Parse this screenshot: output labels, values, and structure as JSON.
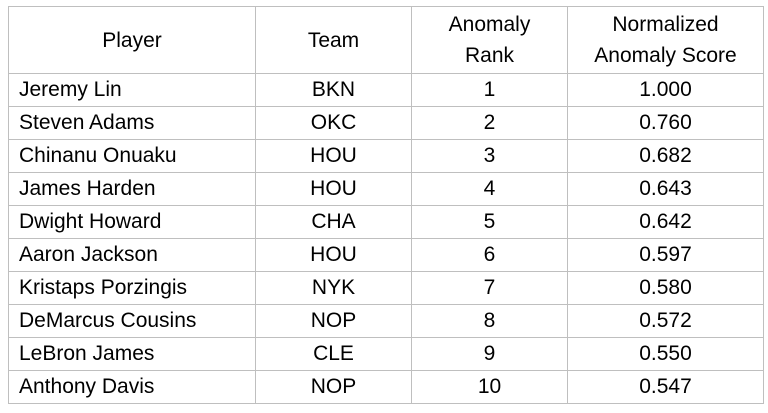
{
  "table": {
    "headers": {
      "player": "Player",
      "team": "Team",
      "rank_line1": "Anomaly",
      "rank_line2": "Rank",
      "score_line1": "Normalized",
      "score_line2": "Anomaly Score"
    },
    "rows": [
      {
        "player": "Jeremy Lin",
        "team": "BKN",
        "rank": "1",
        "score": "1.000"
      },
      {
        "player": "Steven Adams",
        "team": "OKC",
        "rank": "2",
        "score": "0.760"
      },
      {
        "player": "Chinanu Onuaku",
        "team": "HOU",
        "rank": "3",
        "score": "0.682"
      },
      {
        "player": "James Harden",
        "team": "HOU",
        "rank": "4",
        "score": "0.643"
      },
      {
        "player": "Dwight Howard",
        "team": "CHA",
        "rank": "5",
        "score": "0.642"
      },
      {
        "player": "Aaron Jackson",
        "team": "HOU",
        "rank": "6",
        "score": "0.597"
      },
      {
        "player": "Kristaps Porzingis",
        "team": "NYK",
        "rank": "7",
        "score": "0.580"
      },
      {
        "player": "DeMarcus Cousins",
        "team": "NOP",
        "rank": "8",
        "score": "0.572"
      },
      {
        "player": "LeBron James",
        "team": "CLE",
        "rank": "9",
        "score": "0.550"
      },
      {
        "player": "Anthony Davis",
        "team": "NOP",
        "rank": "10",
        "score": "0.547"
      }
    ]
  }
}
